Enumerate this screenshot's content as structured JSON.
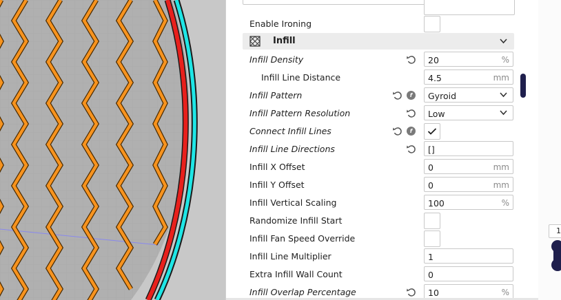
{
  "colors": {
    "accent": "#1f1f4d",
    "infill_line": "#f7931e",
    "wall_red": "#e8201c",
    "wall_cyan": "#1ee6e6",
    "viewport_bg": "#b4b4b4"
  },
  "settings": {
    "ironing_label": "Enable Ironing",
    "section": {
      "title": "Infill",
      "icon": "infill-pattern-icon",
      "collapse_icon": "chevron-down-icon"
    },
    "rows": [
      {
        "label": "Infill Density",
        "value": "20",
        "unit": "%"
      },
      {
        "label": "Infill Line Distance",
        "value": "4.5",
        "unit": "mm"
      },
      {
        "label": "Infill Pattern",
        "value": "Gyroid"
      },
      {
        "label": "Infill Pattern Resolution",
        "value": "Low"
      },
      {
        "label": "Connect Infill Lines",
        "checked": true
      },
      {
        "label": "Infill Line Directions",
        "value": "[]"
      },
      {
        "label": "Infill X Offset",
        "value": "0",
        "unit": "mm"
      },
      {
        "label": "Infill Y Offset",
        "value": "0",
        "unit": "mm"
      },
      {
        "label": "Infill Vertical Scaling",
        "value": "100",
        "unit": "%"
      },
      {
        "label": "Randomize Infill Start",
        "checked": false
      },
      {
        "label": "Infill Fan Speed Override",
        "checked": false
      },
      {
        "label": "Infill Line Multiplier",
        "value": "1"
      },
      {
        "label": "Extra Infill Wall Count",
        "value": "0"
      },
      {
        "label": "Infill Overlap Percentage",
        "value": "10",
        "unit": "%"
      }
    ]
  },
  "right_panel": {
    "layer_label": "1"
  }
}
